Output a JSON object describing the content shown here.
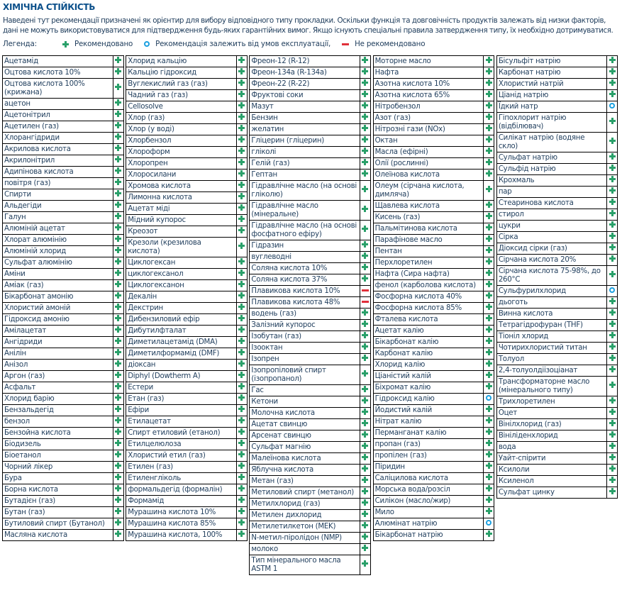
{
  "title": "ХІМІЧНА СТІЙКІСТЬ",
  "description": "Наведені тут рекомендації призначені як орієнтир для вибору відповідного типу прокладки. Оскільки функція та довговічність продуктів залежать від низки факторів, дані не можуть використовуватися для підтвердження будь-яких гарантійних вимог. Якщо існують спеціальні правила затвердження типу, їх необхідно дотримуватися.",
  "legend": {
    "label": "Легенда:",
    "items": [
      {
        "icon": "plus",
        "text": "Рекомендовано"
      },
      {
        "icon": "circle",
        "text": "Рекомендація залежить від умов експлуатації,"
      },
      {
        "icon": "minus",
        "text": "Не рекомендовано"
      }
    ]
  },
  "colors": {
    "recommended": "#2aa06a",
    "conditional": "#1ba0e0",
    "not_recommended": "#e0303a"
  },
  "columns": [
    [
      [
        "Ацетамід",
        "plus"
      ],
      [
        "Оцтова кислота 10%",
        "plus"
      ],
      [
        "Оцтова кислота 100% (крижана)",
        "plus"
      ],
      [
        "ацетон",
        "plus"
      ],
      [
        "Ацетонітрил",
        "plus"
      ],
      [
        "Ацетилен (газ)",
        "plus"
      ],
      [
        "Хлорангідриди",
        "plus"
      ],
      [
        "Акрилова кислота",
        "plus"
      ],
      [
        "Акрилонітрил",
        "plus"
      ],
      [
        "Адипінова кислота",
        "plus"
      ],
      [
        "повітря (газ)",
        "plus"
      ],
      [
        "Спирти",
        "plus"
      ],
      [
        "Альдегіди",
        "plus"
      ],
      [
        "Галун",
        "plus"
      ],
      [
        "Алюміній ацетат",
        "plus"
      ],
      [
        "Хлорат алюмінію",
        "plus"
      ],
      [
        "Алюміній хлорид",
        "plus"
      ],
      [
        "Сульфат алюмінію",
        "plus"
      ],
      [
        "Аміни",
        "plus"
      ],
      [
        "Аміак (газ)",
        "plus"
      ],
      [
        "Бікарбонат амонію",
        "plus"
      ],
      [
        "Хлористий амоній",
        "plus"
      ],
      [
        "Гідроксид амонію",
        "plus"
      ],
      [
        "Амілацетат",
        "plus"
      ],
      [
        "Ангідриди",
        "plus"
      ],
      [
        "Анілін",
        "plus"
      ],
      [
        "Анізол",
        "plus"
      ],
      [
        "Аргон (газ)",
        "plus"
      ],
      [
        "Асфальт",
        "plus"
      ],
      [
        "Хлорид барію",
        "plus"
      ],
      [
        "Бензальдегід",
        "plus"
      ],
      [
        "бензол",
        "plus"
      ],
      [
        "Бензойна кислота",
        "plus"
      ],
      [
        "Біодизель",
        "plus"
      ],
      [
        "Біоетанол",
        "plus"
      ],
      [
        "Чорний лікер",
        "plus"
      ],
      [
        "Бура",
        "plus"
      ],
      [
        "Борна кислота",
        "plus"
      ],
      [
        "Бутадієн (газ)",
        "plus"
      ],
      [
        "Бутан (газ)",
        "plus"
      ],
      [
        "Бутиловий спирт (Бутанол)",
        "plus"
      ],
      [
        "Масляна кислота",
        "plus"
      ]
    ],
    [
      [
        "Хлорид кальцію",
        "plus"
      ],
      [
        "Кальцію гідроксид",
        "plus"
      ],
      [
        "Вуглекислий газ (газ)",
        "plus"
      ],
      [
        "Чадний газ (газ)",
        "plus"
      ],
      [
        "Cellosolve",
        "plus"
      ],
      [
        "Хлор (газ)",
        "plus"
      ],
      [
        "Хлор (у воді)",
        "plus"
      ],
      [
        "Хлорбензол",
        "plus"
      ],
      [
        "Хлороформ",
        "plus"
      ],
      [
        "Хлоропрен",
        "plus"
      ],
      [
        "Хлоросилани",
        "plus"
      ],
      [
        "Хромова кислота",
        "plus"
      ],
      [
        "Лимонна кислота",
        "plus"
      ],
      [
        "Ацетат міді",
        "plus"
      ],
      [
        "Мідний купорос",
        "plus"
      ],
      [
        "Креозот",
        "plus"
      ],
      [
        "Крезоли (крезилова кислота)",
        "plus"
      ],
      [
        "Циклогексан",
        "plus"
      ],
      [
        "циклогексанол",
        "plus"
      ],
      [
        "Циклогексанон",
        "plus"
      ],
      [
        "Декалін",
        "plus"
      ],
      [
        "Декстрин",
        "plus"
      ],
      [
        "Дибензиловий ефір",
        "plus"
      ],
      [
        "Дибутилфталат",
        "plus"
      ],
      [
        "Диметилацетамід (DMA)",
        "plus"
      ],
      [
        "Диметилформамід (DMF)",
        "plus"
      ],
      [
        "діоксан",
        "plus"
      ],
      [
        "Diphyl (Dowtherm A)",
        "plus"
      ],
      [
        "Естери",
        "plus"
      ],
      [
        "Етан (газ)",
        "plus"
      ],
      [
        "Ефіри",
        "plus"
      ],
      [
        "Етилацетат",
        "plus"
      ],
      [
        "Спирт етиловий (етанол)",
        "plus"
      ],
      [
        "Етилцелюлоза",
        "plus"
      ],
      [
        "Хлористий етил (газ)",
        "plus"
      ],
      [
        "Етилен (газ)",
        "plus"
      ],
      [
        "Етиленгліколь",
        "plus"
      ],
      [
        "формальдегід (формалін)",
        "plus"
      ],
      [
        "Формамід",
        "plus"
      ],
      [
        "Мурашина кислота 10%",
        "plus"
      ],
      [
        "Мурашина кислота 85%",
        "plus"
      ],
      [
        "Мурашина кислота, 100%",
        "plus"
      ]
    ],
    [
      [
        "Фреон-12 (R-12)",
        "plus"
      ],
      [
        "Фреон-134a (R-134a)",
        "plus"
      ],
      [
        "Фреон-22 (R-22)",
        "plus"
      ],
      [
        "Фруктові соки",
        "plus"
      ],
      [
        "Мазут",
        "plus"
      ],
      [
        "Бензин",
        "plus"
      ],
      [
        "желатин",
        "plus"
      ],
      [
        "Гліцерин (гліцерин)",
        "plus"
      ],
      [
        "гліколі",
        "plus"
      ],
      [
        "Гелій (газ)",
        "plus"
      ],
      [
        "Гептан",
        "plus"
      ],
      [
        "Гідравлічне масло (на основі гліколю)",
        "plus"
      ],
      [
        "Гідравлічне масло (мінеральне)",
        "plus"
      ],
      [
        "Гідравлічне масло (на основі фосфатного ефіру)",
        "plus"
      ],
      [
        "Гідразин",
        "plus"
      ],
      [
        "вуглеводні",
        "plus"
      ],
      [
        "Соляна кислота 10%",
        "plus"
      ],
      [
        "Соляна кислота 37%",
        "plus"
      ],
      [
        "Плавикова кислота 10%",
        "minus"
      ],
      [
        "Плавикова кислота 48%",
        "minus"
      ],
      [
        "водень (газ)",
        "plus"
      ],
      [
        "Залізний купорос",
        "plus"
      ],
      [
        "Ізобутан (газ)",
        "plus"
      ],
      [
        "Ізооктан",
        "plus"
      ],
      [
        "Ізопрен",
        "plus"
      ],
      [
        "Ізопропіловий спирт (ізопропанол)",
        "plus"
      ],
      [
        "Гас",
        "plus"
      ],
      [
        "Кетони",
        "plus"
      ],
      [
        "Молочна кислота",
        "plus"
      ],
      [
        "Ацетат свинцю",
        "plus"
      ],
      [
        "Арсенат свинцю",
        "plus"
      ],
      [
        "Сульфат магнію",
        "plus"
      ],
      [
        "Малеїнова кислота",
        "plus"
      ],
      [
        "Яблучна кислота",
        "plus"
      ],
      [
        "Метан (газ)",
        "plus"
      ],
      [
        "Метиловий спирт (метанол)",
        "plus"
      ],
      [
        "Метилхлорид (газ)",
        "plus"
      ],
      [
        "Метилен дихлорид",
        "plus"
      ],
      [
        "Метилетилкетон (MEK)",
        "plus"
      ],
      [
        "N-метил-піролідон (NMP)",
        "plus"
      ],
      [
        "молоко",
        "plus"
      ],
      [
        "Тип мінерального масла ASTM 1",
        "plus"
      ]
    ],
    [
      [
        "Моторне масло",
        "plus"
      ],
      [
        "Нафта",
        "plus"
      ],
      [
        "Азотна кислота 10%",
        "plus"
      ],
      [
        "Азотна кислота 65%",
        "plus"
      ],
      [
        "Нітробензол",
        "plus"
      ],
      [
        "Азот (газ)",
        "plus"
      ],
      [
        "Нітрозні гази (NOx)",
        "plus"
      ],
      [
        "Октан",
        "plus"
      ],
      [
        "Масла (ефірні)",
        "plus"
      ],
      [
        "Олії (рослинні)",
        "plus"
      ],
      [
        "Олеїнова кислота",
        "plus"
      ],
      [
        "Олеум (сірчана кислота, димляча)",
        "plus"
      ],
      [
        "Щавлева кислота",
        "plus"
      ],
      [
        "Кисень (газ)",
        "plus"
      ],
      [
        "Пальмітинова кислота",
        "plus"
      ],
      [
        "Парафінове масло",
        "plus"
      ],
      [
        "Пентан",
        "plus"
      ],
      [
        "Перхлоретилен",
        "plus"
      ],
      [
        "Нафта (Сира нафта)",
        "plus"
      ],
      [
        "фенол (карболова кислота)",
        "plus"
      ],
      [
        "Фосфорна кислота 40%",
        "plus"
      ],
      [
        "Фосфорна кислота 85%",
        "plus"
      ],
      [
        "Фталева кислота",
        "plus"
      ],
      [
        "Ацетат калію",
        "plus"
      ],
      [
        "Бікарбонат калію",
        "plus"
      ],
      [
        "Карбонат калію",
        "plus"
      ],
      [
        "Хлорид калію",
        "plus"
      ],
      [
        "Ціаністий калій",
        "plus"
      ],
      [
        "Біхромат калію",
        "plus"
      ],
      [
        "Гідроксид калію",
        "circle"
      ],
      [
        "Йодистий калій",
        "plus"
      ],
      [
        "Нітрат калію",
        "plus"
      ],
      [
        "Перманганат калію",
        "plus"
      ],
      [
        "пропан (газ)",
        "plus"
      ],
      [
        "пропілен (газ)",
        "plus"
      ],
      [
        "Піридин",
        "plus"
      ],
      [
        "Саліцилова кислота",
        "plus"
      ],
      [
        "Морська вода/розсіл",
        "plus"
      ],
      [
        "Силікон (масло/жир)",
        "plus"
      ],
      [
        "Мило",
        "plus"
      ],
      [
        "Алюмінат натрію",
        "circle"
      ],
      [
        "Бікарбонат натрію",
        "plus"
      ]
    ],
    [
      [
        "Бісульфіт натрію",
        "plus"
      ],
      [
        "Карбонат натрію",
        "plus"
      ],
      [
        "Хлористий натрій",
        "plus"
      ],
      [
        "Ціанід натрію",
        "plus"
      ],
      [
        "Їдкий натр",
        "circle"
      ],
      [
        "Гіпохлорит натрію (відбілювач)",
        "plus"
      ],
      [
        "Силікат натрію (водяне скло)",
        "plus"
      ],
      [
        "Сульфат натрію",
        "plus"
      ],
      [
        "Сульфід натрію",
        "plus"
      ],
      [
        "Крохмаль",
        "plus"
      ],
      [
        "пар",
        "plus"
      ],
      [
        "Стеаринова кислота",
        "plus"
      ],
      [
        "стирол",
        "plus"
      ],
      [
        "цукри",
        "plus"
      ],
      [
        "Сірка",
        "plus"
      ],
      [
        "Діоксид сірки (газ)",
        "plus"
      ],
      [
        "Сірчана кислота 20%",
        "plus"
      ],
      [
        "Сірчана кислота 75-98%, до 260°C",
        "plus"
      ],
      [
        "Сульфурилхлорид",
        "circle"
      ],
      [
        "дьоготь",
        "plus"
      ],
      [
        "Винна кислота",
        "plus"
      ],
      [
        "Тетрагідрофуран (THF)",
        "plus"
      ],
      [
        "Тіоніл хлорид",
        "plus"
      ],
      [
        "Чотирихлористий титан",
        "plus"
      ],
      [
        "Толуол",
        "plus"
      ],
      [
        "2,4-толуолдіізоціанат",
        "plus"
      ],
      [
        "Трансформаторне масло (мінерального типу)",
        "plus"
      ],
      [
        "Трихлоретилен",
        "plus"
      ],
      [
        "Оцет",
        "plus"
      ],
      [
        "Вінілхлорид (газ)",
        "plus"
      ],
      [
        "Вініліденхлорид",
        "plus"
      ],
      [
        "вода",
        "plus"
      ],
      [
        "Уайт-спірити",
        "plus"
      ],
      [
        "Ксилоли",
        "plus"
      ],
      [
        "Ксиленол",
        "plus"
      ],
      [
        "Сульфат цинку",
        "plus"
      ]
    ]
  ]
}
